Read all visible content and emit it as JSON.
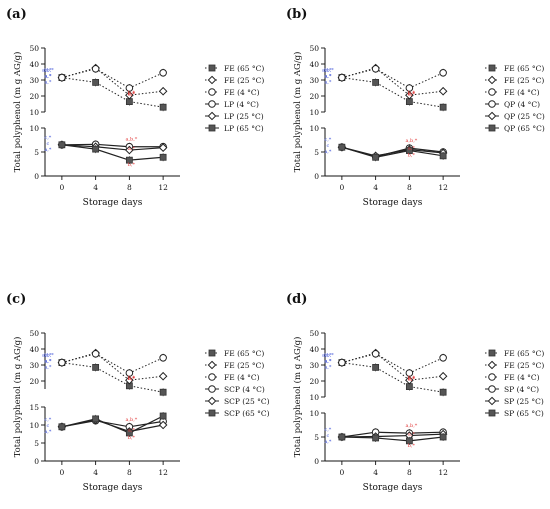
{
  "figure": {
    "panel_labels": [
      "(a)",
      "(b)",
      "(c)",
      "(d)"
    ],
    "ylabel": "Total polyphenol (m g AG/g)",
    "xlabel": "Storage days"
  },
  "chart_data": [
    {
      "panel": "(a)",
      "type": "line",
      "xlabel": "Storage days",
      "ylabel": "Total polyphenol (m g AG/g)",
      "x": [
        0,
        4,
        8,
        12
      ],
      "xticks": [
        "0",
        "4",
        "8",
        "12"
      ],
      "axes": [
        {
          "position": "top",
          "ylim": [
            10,
            50
          ],
          "yticks": [
            "10",
            "20",
            "30",
            "40",
            "50"
          ]
        },
        {
          "position": "bottom",
          "ylim": [
            0,
            10
          ],
          "yticks": [
            "0",
            "5",
            "10"
          ]
        }
      ],
      "series": [
        {
          "name": "FE (65 °C)",
          "axis": "top",
          "marker": "filled-square",
          "line": "dotted",
          "values": [
            31.5,
            28.5,
            16.5,
            13.0
          ]
        },
        {
          "name": "FE (25 °C)",
          "axis": "top",
          "marker": "open-diamond",
          "line": "dotted",
          "values": [
            31.5,
            37.5,
            20.5,
            23.0
          ]
        },
        {
          "name": "FE (4 °C)",
          "axis": "top",
          "marker": "open-circle",
          "line": "dotted",
          "values": [
            31.5,
            37.0,
            25.0,
            34.5
          ]
        },
        {
          "name": "LP (4 °C)",
          "axis": "bottom",
          "marker": "open-circle",
          "line": "solid",
          "values": [
            6.5,
            6.6,
            6.1,
            6.1
          ]
        },
        {
          "name": "LP (25 °C)",
          "axis": "bottom",
          "marker": "open-diamond",
          "line": "solid",
          "values": [
            6.5,
            6.1,
            5.4,
            5.9
          ]
        },
        {
          "name": "LP (65 °C)",
          "axis": "bottom",
          "marker": "filled-square",
          "line": "solid",
          "values": [
            6.5,
            5.6,
            3.3,
            3.9
          ]
        }
      ],
      "annotations": [
        "a,b,*",
        "a,*",
        "a,*",
        "b,*",
        "a,*",
        "b,*",
        "c,*",
        "a,b,*",
        "c",
        "a,*",
        "a,*",
        "b,*",
        "b,*",
        "c,*",
        "a,*"
      ]
    },
    {
      "panel": "(b)",
      "type": "line",
      "xlabel": "Storage days",
      "ylabel": "Total polyphenol (m g AG/g)",
      "x": [
        0,
        4,
        8,
        12
      ],
      "xticks": [
        "0",
        "4",
        "8",
        "12"
      ],
      "axes": [
        {
          "position": "top",
          "ylim": [
            10,
            50
          ],
          "yticks": [
            "10",
            "20",
            "30",
            "40",
            "50"
          ]
        },
        {
          "position": "bottom",
          "ylim": [
            0,
            10
          ],
          "yticks": [
            "0",
            "5",
            "10"
          ]
        }
      ],
      "series": [
        {
          "name": "FE (65 °C)",
          "axis": "top",
          "marker": "filled-square",
          "line": "dotted",
          "values": [
            31.5,
            28.5,
            16.5,
            13.0
          ]
        },
        {
          "name": "FE (25 °C)",
          "axis": "top",
          "marker": "open-diamond",
          "line": "dotted",
          "values": [
            31.5,
            37.5,
            20.5,
            23.0
          ]
        },
        {
          "name": "FE (4 °C)",
          "axis": "top",
          "marker": "open-circle",
          "line": "dotted",
          "values": [
            31.5,
            37.0,
            25.0,
            34.5
          ]
        },
        {
          "name": "QP (4 °C)",
          "axis": "bottom",
          "marker": "open-circle",
          "line": "solid",
          "values": [
            6.0,
            4.0,
            5.8,
            5.0
          ]
        },
        {
          "name": "QP (25 °C)",
          "axis": "bottom",
          "marker": "open-diamond",
          "line": "solid",
          "values": [
            6.0,
            4.2,
            5.5,
            4.8
          ]
        },
        {
          "name": "QP (65 °C)",
          "axis": "bottom",
          "marker": "filled-square",
          "line": "solid",
          "values": [
            6.0,
            3.9,
            5.3,
            4.2
          ]
        }
      ],
      "annotations": [
        "a,b,*",
        "a,*",
        "a,*",
        "b,*",
        "a,*",
        "b,*",
        "c,*",
        "a,b,*",
        "c",
        "a,*",
        "a,*",
        "b,*",
        "b,*",
        "c,*",
        "a,*"
      ]
    },
    {
      "panel": "(c)",
      "type": "line",
      "xlabel": "Storage days",
      "ylabel": "Total polyphenol (m g AG/g)",
      "x": [
        0,
        4,
        8,
        12
      ],
      "xticks": [
        "0",
        "4",
        "8",
        "12"
      ],
      "axes": [
        {
          "position": "top",
          "ylim": [
            15,
            50
          ],
          "yticks": [
            "20",
            "30",
            "40",
            "50"
          ]
        },
        {
          "position": "bottom",
          "ylim": [
            0,
            15
          ],
          "yticks": [
            "0",
            "5",
            "10",
            "15"
          ]
        }
      ],
      "series": [
        {
          "name": "FE (65 °C)",
          "axis": "top",
          "marker": "filled-square",
          "line": "dotted",
          "values": [
            31.5,
            28.5,
            17.0,
            13.0
          ]
        },
        {
          "name": "FE (25 °C)",
          "axis": "top",
          "marker": "open-diamond",
          "line": "dotted",
          "values": [
            31.5,
            37.5,
            20.5,
            23.0
          ]
        },
        {
          "name": "FE (4 °C)",
          "axis": "top",
          "marker": "open-circle",
          "line": "dotted",
          "values": [
            31.5,
            37.0,
            25.0,
            34.5
          ]
        },
        {
          "name": "SCP (4 °C)",
          "axis": "bottom",
          "marker": "open-circle",
          "line": "solid",
          "values": [
            9.5,
            11.2,
            9.5,
            11.0
          ]
        },
        {
          "name": "SCP (25 °C)",
          "axis": "bottom",
          "marker": "open-diamond",
          "line": "solid",
          "values": [
            9.5,
            11.4,
            8.2,
            10.0
          ]
        },
        {
          "name": "SCP (65 °C)",
          "axis": "bottom",
          "marker": "filled-square",
          "line": "solid",
          "values": [
            9.5,
            11.7,
            7.8,
            12.5
          ]
        }
      ],
      "annotations": [
        "a,b,*",
        "a,*",
        "a,*",
        "b,*",
        "a,*",
        "b,*",
        "c,*",
        "a,b,*",
        "c",
        "a,*",
        "a,*",
        "b,*",
        "b,*",
        "c,*",
        "a,*"
      ]
    },
    {
      "panel": "(d)",
      "type": "line",
      "xlabel": "Storage days",
      "ylabel": "Total polyphenol (m g AG/g)",
      "x": [
        0,
        4,
        8,
        12
      ],
      "xticks": [
        "0",
        "4",
        "8",
        "12"
      ],
      "axes": [
        {
          "position": "top",
          "ylim": [
            10,
            50
          ],
          "yticks": [
            "10",
            "20",
            "30",
            "40",
            "50"
          ]
        },
        {
          "position": "bottom",
          "ylim": [
            0,
            10
          ],
          "yticks": [
            "0",
            "5",
            "10"
          ]
        }
      ],
      "series": [
        {
          "name": "FE (65 °C)",
          "axis": "top",
          "marker": "filled-square",
          "line": "dotted",
          "values": [
            31.5,
            28.5,
            16.5,
            13.0
          ]
        },
        {
          "name": "FE (25 °C)",
          "axis": "top",
          "marker": "open-diamond",
          "line": "dotted",
          "values": [
            31.5,
            37.5,
            20.5,
            23.0
          ]
        },
        {
          "name": "FE (4 °C)",
          "axis": "top",
          "marker": "open-circle",
          "line": "dotted",
          "values": [
            31.5,
            37.0,
            25.0,
            34.5
          ]
        },
        {
          "name": "SP (4 °C)",
          "axis": "bottom",
          "marker": "open-circle",
          "line": "solid",
          "values": [
            5.0,
            6.0,
            5.8,
            6.0
          ]
        },
        {
          "name": "SP (25 °C)",
          "axis": "bottom",
          "marker": "open-diamond",
          "line": "solid",
          "values": [
            5.0,
            5.1,
            5.3,
            5.6
          ]
        },
        {
          "name": "SP (65 °C)",
          "axis": "bottom",
          "marker": "filled-square",
          "line": "solid",
          "values": [
            5.0,
            4.8,
            4.2,
            5.0
          ]
        }
      ],
      "annotations": [
        "a,b,*",
        "a,*",
        "a,*",
        "b,*",
        "a,*",
        "b,*",
        "c,*",
        "a,b,*",
        "c",
        "a,*",
        "a,*",
        "b,*",
        "b,*",
        "c,*",
        "a,*"
      ]
    }
  ]
}
